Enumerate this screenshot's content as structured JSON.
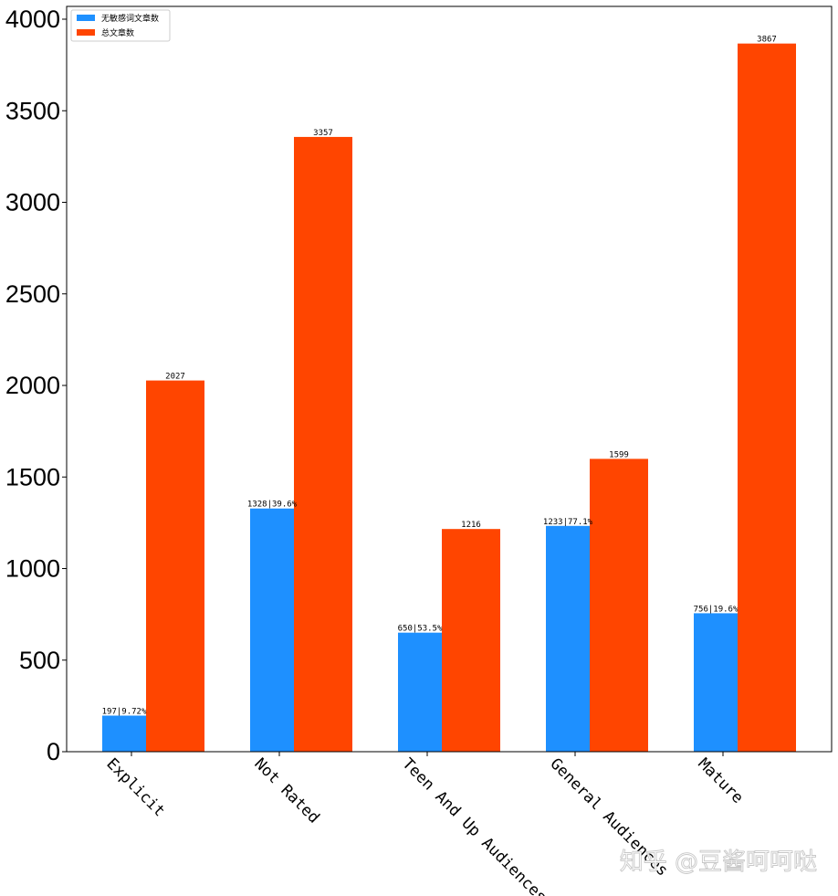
{
  "chart_data": {
    "type": "bar",
    "categories": [
      "Explicit",
      "Not Rated",
      "Teen And Up Audiences",
      "General Audiences",
      "Mature"
    ],
    "series": [
      {
        "name": "无敏感词文章数",
        "color": "#1E90FF",
        "values": [
          197,
          1328,
          650,
          1233,
          756
        ],
        "labels": [
          "197|9.72%",
          "1328|39.6%",
          "650|53.5%",
          "1233|77.1%",
          "756|19.6%"
        ]
      },
      {
        "name": "总文章数",
        "color": "#FF4500",
        "values": [
          2027,
          3357,
          1216,
          1599,
          3867
        ],
        "labels": [
          "2027",
          "3357",
          "1216",
          "1599",
          "3867"
        ]
      }
    ],
    "ylim": [
      0,
      4050
    ],
    "yticks": [
      0,
      500,
      1000,
      1500,
      2000,
      2500,
      3000,
      3500,
      4000
    ],
    "xtick_rotation": -45,
    "legend_position": "top-left",
    "grid": false
  },
  "watermark": "知乎 @豆酱呵呵哒"
}
